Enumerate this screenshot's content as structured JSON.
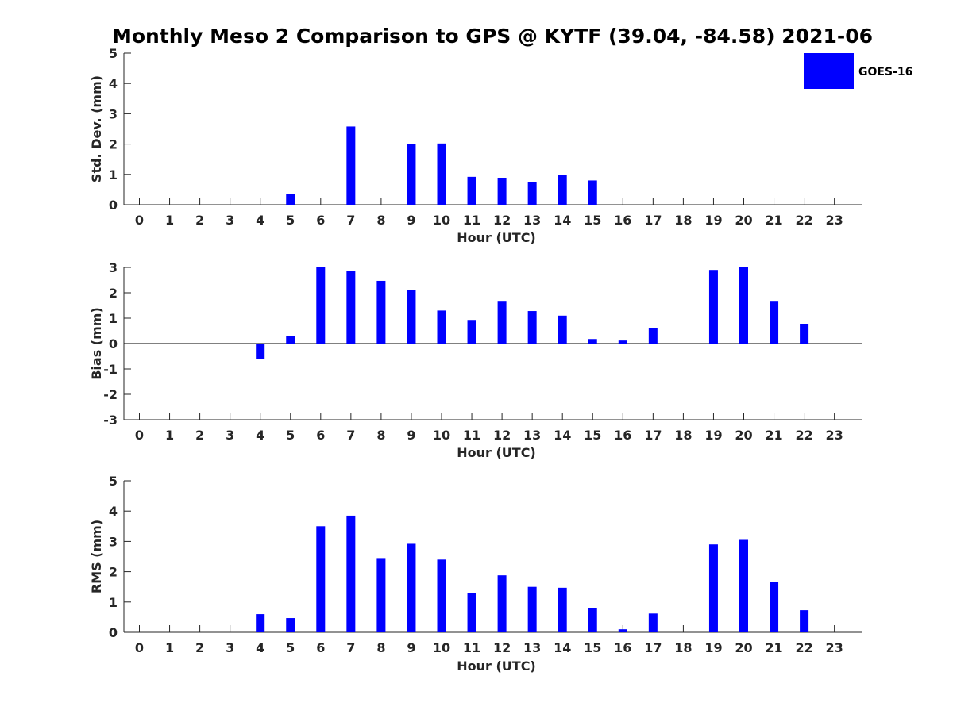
{
  "title": "Monthly Meso 2 Comparison to GPS @ KYTF (39.04, -84.58) 2021-06",
  "legend": {
    "label": "GOES-16",
    "color": "#0000ff"
  },
  "chart_data": [
    {
      "type": "bar",
      "id": "stddev",
      "ylabel": "Std. Dev. (mm)",
      "xlabel": "Hour (UTC)",
      "ylim": [
        0,
        5
      ],
      "yticks": [
        0,
        1,
        2,
        3,
        4,
        5
      ],
      "categories": [
        "0",
        "1",
        "2",
        "3",
        "4",
        "5",
        "6",
        "7",
        "8",
        "9",
        "10",
        "11",
        "12",
        "13",
        "14",
        "15",
        "16",
        "17",
        "18",
        "19",
        "20",
        "21",
        "22",
        "23"
      ],
      "series": [
        {
          "name": "GOES-16",
          "color": "#0000ff",
          "values": [
            null,
            null,
            null,
            null,
            null,
            0.35,
            null,
            2.58,
            null,
            2.0,
            2.02,
            0.92,
            0.88,
            0.75,
            0.97,
            0.8,
            null,
            null,
            null,
            null,
            null,
            null,
            null,
            null
          ]
        }
      ],
      "grid": false
    },
    {
      "type": "bar",
      "id": "bias",
      "ylabel": "Bias (mm)",
      "xlabel": "Hour (UTC)",
      "ylim": [
        -3,
        3
      ],
      "yticks": [
        -3,
        -2,
        -1,
        0,
        1,
        2,
        3
      ],
      "zero_line": true,
      "categories": [
        "0",
        "1",
        "2",
        "3",
        "4",
        "5",
        "6",
        "7",
        "8",
        "9",
        "10",
        "11",
        "12",
        "13",
        "14",
        "15",
        "16",
        "17",
        "18",
        "19",
        "20",
        "21",
        "22",
        "23"
      ],
      "series": [
        {
          "name": "GOES-16",
          "color": "#0000ff",
          "values": [
            null,
            null,
            null,
            null,
            -0.6,
            0.3,
            3.0,
            2.85,
            2.47,
            2.12,
            1.3,
            0.93,
            1.65,
            1.28,
            1.1,
            0.18,
            0.12,
            0.62,
            null,
            2.9,
            3.0,
            1.65,
            0.75,
            null
          ]
        }
      ],
      "grid": false
    },
    {
      "type": "bar",
      "id": "rms",
      "ylabel": "RMS (mm)",
      "xlabel": "Hour (UTC)",
      "ylim": [
        0,
        5
      ],
      "yticks": [
        0,
        1,
        2,
        3,
        4,
        5
      ],
      "categories": [
        "0",
        "1",
        "2",
        "3",
        "4",
        "5",
        "6",
        "7",
        "8",
        "9",
        "10",
        "11",
        "12",
        "13",
        "14",
        "15",
        "16",
        "17",
        "18",
        "19",
        "20",
        "21",
        "22",
        "23"
      ],
      "series": [
        {
          "name": "GOES-16",
          "color": "#0000ff",
          "values": [
            null,
            null,
            null,
            null,
            0.6,
            0.47,
            3.5,
            3.85,
            2.45,
            2.92,
            2.4,
            1.3,
            1.88,
            1.5,
            1.47,
            0.8,
            0.1,
            0.62,
            null,
            2.9,
            3.05,
            1.65,
            0.73,
            null
          ]
        }
      ],
      "grid": false
    }
  ]
}
